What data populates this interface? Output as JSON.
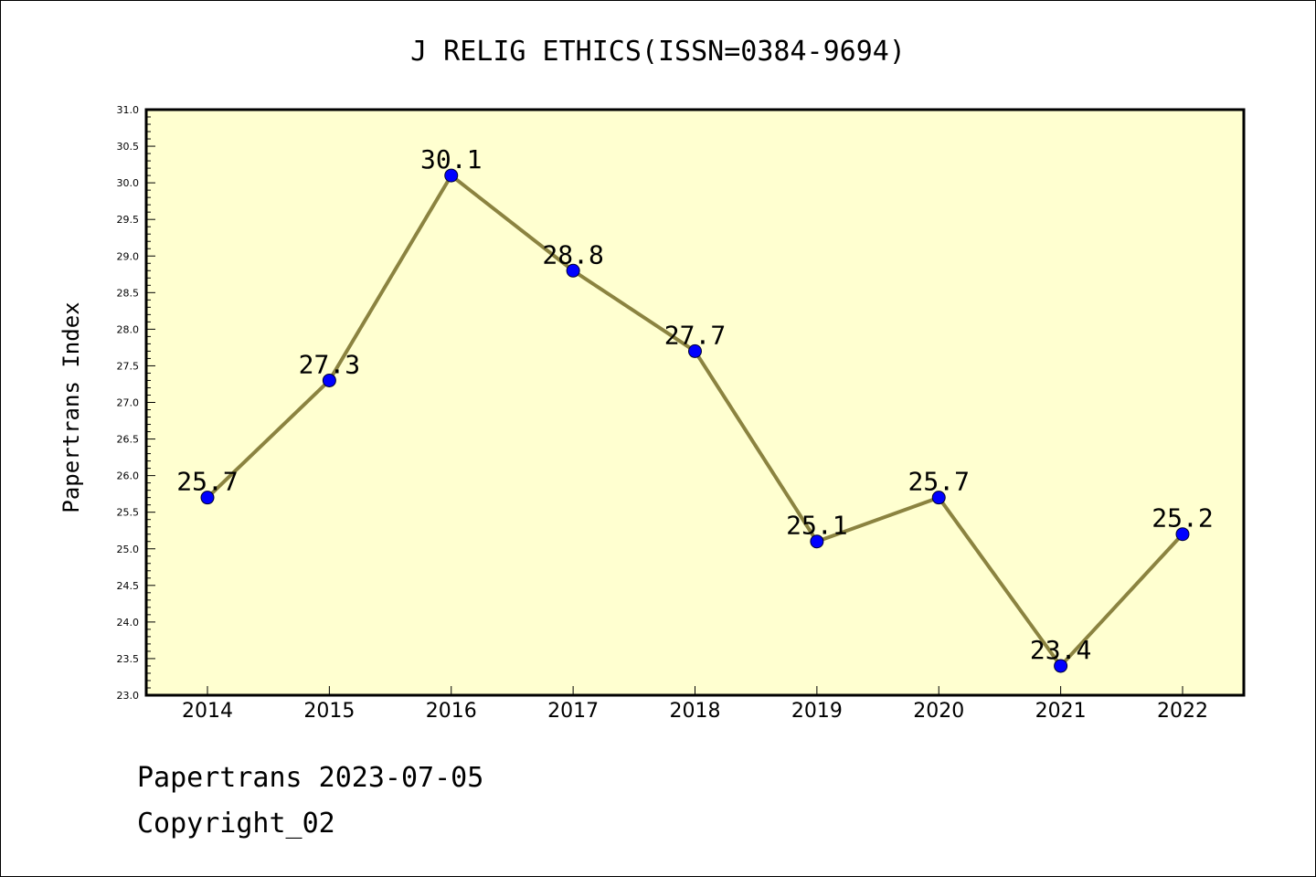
{
  "chart_data": {
    "type": "line",
    "title": "J RELIG ETHICS(ISSN=0384-9694)",
    "xlabel": "",
    "ylabel": "Papertrans Index",
    "categories": [
      "2014",
      "2015",
      "2016",
      "2017",
      "2018",
      "2019",
      "2020",
      "2021",
      "2022"
    ],
    "values": [
      25.7,
      27.3,
      30.1,
      28.8,
      27.7,
      25.1,
      25.7,
      23.4,
      25.2
    ],
    "data_labels": [
      "25.7",
      "27.3",
      "30.1",
      "28.8",
      "27.7",
      "25.1",
      "25.7",
      "23.4",
      "25.2"
    ],
    "ylim": [
      23.0,
      31.0
    ],
    "y_ticks": [
      "23.0",
      "23.5",
      "24.0",
      "24.5",
      "25.0",
      "25.5",
      "26.0",
      "26.5",
      "27.0",
      "27.5",
      "28.0",
      "28.5",
      "29.0",
      "29.5",
      "30.0",
      "30.5",
      "31.0"
    ],
    "grid": false,
    "legend": "none",
    "colors": {
      "plot_background": "#ffffd0",
      "line": "#8b8340",
      "marker": "#0000ff"
    }
  },
  "footer": {
    "line1": "Papertrans 2023-07-05",
    "line2": "Copyright_02"
  }
}
